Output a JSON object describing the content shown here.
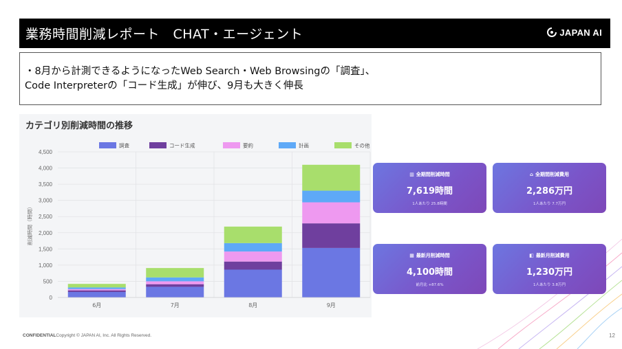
{
  "header": {
    "title": "業務時間削減レポート　CHAT・エージェント",
    "logo_text": "JAPAN AI"
  },
  "summary": {
    "line1": "・8月から計測できるようになったWeb Search・Web Browsingの「調査」、",
    "line2": "Code Interpreterの「コード生成」が伸び、9月も大きく伸長"
  },
  "chart_data": {
    "type": "bar",
    "stacked": true,
    "title": "カテゴリ別削減時間の推移",
    "xlabel": "",
    "ylabel": "削減時間（時間）",
    "ylim": [
      0,
      4500
    ],
    "yticks": [
      "0",
      "500",
      "1,000",
      "1,500",
      "2,000",
      "2,500",
      "3,000",
      "3,500",
      "4,000",
      "4,500"
    ],
    "ytick_values": [
      0,
      500,
      1000,
      1500,
      2000,
      2500,
      3000,
      3500,
      4000,
      4500
    ],
    "categories": [
      "6月",
      "7月",
      "8月",
      "9月"
    ],
    "grid": true,
    "legend_position": "top",
    "series": [
      {
        "name": "調査",
        "color": "#6b77e3",
        "values": [
          170,
          330,
          860,
          1530
        ]
      },
      {
        "name": "コード生成",
        "color": "#6f3f9e",
        "values": [
          50,
          80,
          250,
          760
        ]
      },
      {
        "name": "要約",
        "color": "#ee99f0",
        "values": [
          40,
          90,
          310,
          650
        ]
      },
      {
        "name": "計画",
        "color": "#5ea9f7",
        "values": [
          50,
          120,
          260,
          360
        ]
      },
      {
        "name": "その他",
        "color": "#a8de6c",
        "values": [
          110,
          290,
          510,
          800
        ]
      }
    ]
  },
  "cards": [
    {
      "icon": "▥",
      "title": "全期間削減時間",
      "value": "7,619時間",
      "sub": "1人あたり 25.8時間"
    },
    {
      "icon": "⌂",
      "title": "全期間削減費用",
      "value": "2,286万円",
      "sub": "1人あたり 7.7万円"
    },
    {
      "icon": "▦",
      "title": "最新月削減時間",
      "value": "4,100時間",
      "sub": "前月比 +87.6%"
    },
    {
      "icon": "◧",
      "title": "最新月削減費用",
      "value": "1,230万円",
      "sub": "1人あたり 3.8万円"
    }
  ],
  "footer": {
    "confidential": "CONFIDENTIAL",
    "copyright": "Copyright © JAPAN AI, Inc. All Rights Reserved.",
    "page": "12"
  }
}
